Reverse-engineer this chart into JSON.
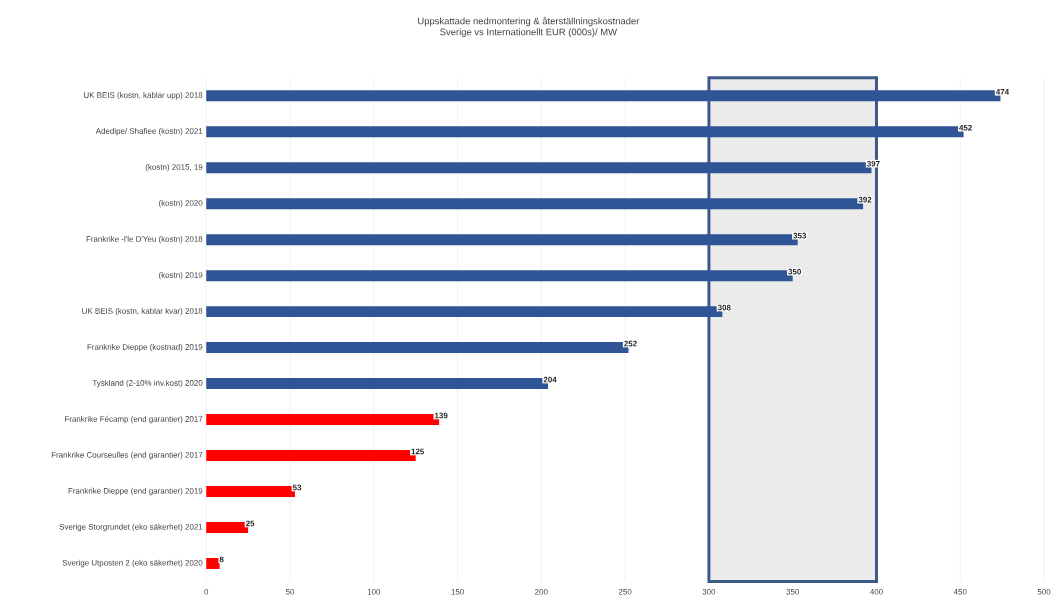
{
  "chart_data": {
    "type": "bar",
    "orientation": "horizontal",
    "title": "Uppskattade nedmontering & återställningskostnader",
    "subtitle": "Sverige vs Internationellt  EUR (000s)/ MW",
    "categories": [
      "UK BEIS (kostn, kablar upp) 2018",
      "Adedipe/ Shafiee (kostn) 2021",
      "(kostn) 2015, 19",
      "(kostn) 2020",
      "Frankrike -l'le D'Yeu (kostn) 2018",
      "(kostn) 2019",
      "UK BEIS (kostn, kablar kvar) 2018",
      "Frankrike Dieppe (kostnad) 2019",
      "Tyskland (2-10% inv.kost) 2020",
      "Frankrike Fécamp (end garantier) 2017",
      "Frankrike Courseulles (end garantier) 2017",
      "Frankrike Dieppe (end garantier) 2019",
      "Sverige Storgrundet (eko säkerhet) 2021",
      "Sverige Utposten 2 (eko säkerhet) 2020"
    ],
    "values": [
      474,
      452,
      397,
      392,
      353,
      350,
      308,
      252,
      204,
      139,
      125,
      53,
      25,
      8
    ],
    "colors": [
      "#2f5597",
      "#2f5597",
      "#2f5597",
      "#2f5597",
      "#2f5597",
      "#2f5597",
      "#2f5597",
      "#2f5597",
      "#2f5597",
      "#ff0000",
      "#ff0000",
      "#ff0000",
      "#ff0000",
      "#ff0000"
    ],
    "data_labels": true,
    "xlim": [
      0,
      500
    ],
    "xticks": [
      0,
      50,
      100,
      150,
      200,
      250,
      300,
      350,
      400,
      450,
      500
    ],
    "grid": "x",
    "bands": [
      {
        "axis": "x",
        "from": 300,
        "to": 400,
        "color": "#ebebeb"
      }
    ]
  }
}
